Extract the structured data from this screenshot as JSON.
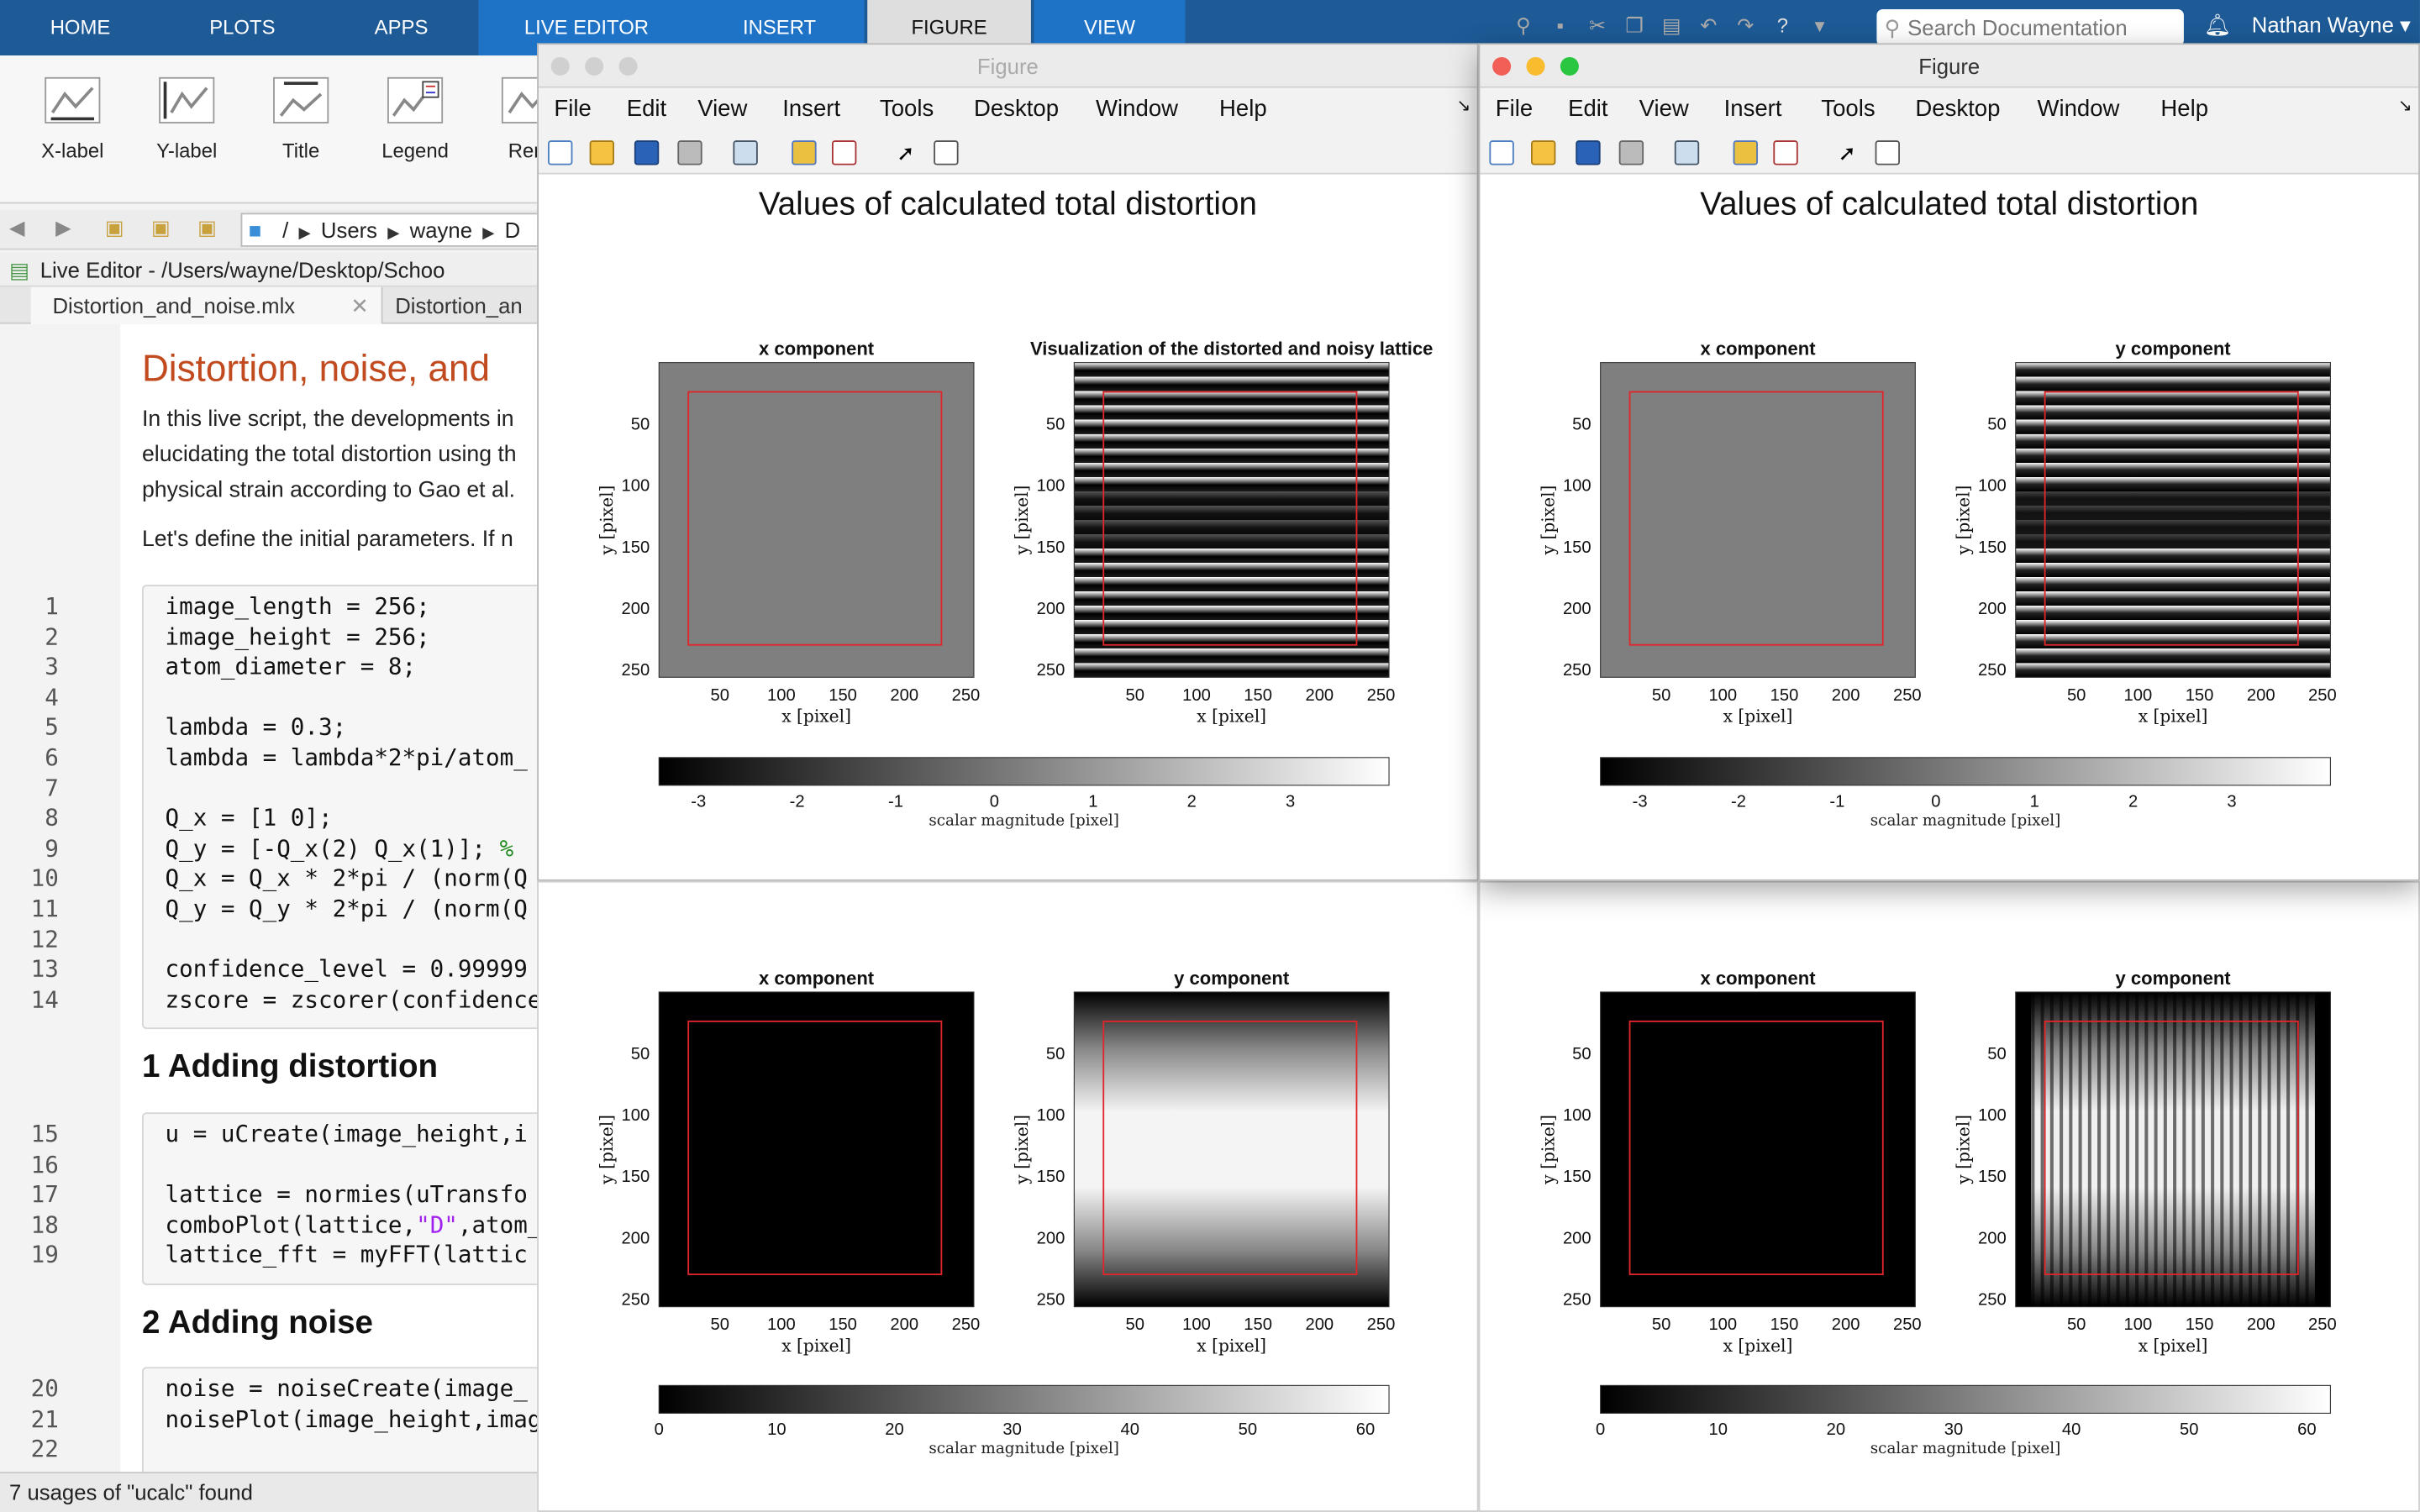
{
  "ribbon_tabs": [
    "HOME",
    "PLOTS",
    "APPS",
    "LIVE EDITOR",
    "INSERT",
    "FIGURE",
    "VIEW"
  ],
  "ribbon_buttons": [
    "X-label",
    "Y-label",
    "Title",
    "Legend",
    "Rem"
  ],
  "search_placeholder": "Search Documentation",
  "user_name": "Nathan Wayne",
  "path": [
    "/",
    "Users",
    "wayne",
    "D"
  ],
  "live_editor_title": "Live Editor - /Users/wayne/Desktop/Schoo",
  "file_tabs": [
    "Distortion_and_noise.mlx",
    "Distortion_an"
  ],
  "editor": {
    "title": "Distortion, noise, and",
    "paragraph_lines": [
      "In this live script, the developments in",
      "elucidating the total distortion using th",
      "physical strain according to Gao et al."
    ],
    "paragraph2": "Let's define the initial parameters. If n",
    "section1_num": "1",
    "section1_title": "Adding distortion",
    "section2_num": "2",
    "section2_title": "Adding noise",
    "code_lines": [
      {
        "n": "1",
        "t": "image_length = 256;"
      },
      {
        "n": "2",
        "t": "image_height = 256;"
      },
      {
        "n": "3",
        "t": "atom_diameter = 8;"
      },
      {
        "n": "4",
        "t": ""
      },
      {
        "n": "5",
        "t": "lambda = 0.3;"
      },
      {
        "n": "6",
        "t": "lambda = lambda*2*pi/atom_"
      },
      {
        "n": "7",
        "t": ""
      },
      {
        "n": "8",
        "t": "Q_x = [1 0];"
      },
      {
        "n": "9",
        "t": "Q_y = [-Q_x(2) Q_x(1)]; %"
      },
      {
        "n": "10",
        "t": "Q_x = Q_x * 2*pi / (norm(Q"
      },
      {
        "n": "11",
        "t": "Q_y = Q_y * 2*pi / (norm(Q"
      },
      {
        "n": "12",
        "t": ""
      },
      {
        "n": "13",
        "t": "confidence_level = 0.99999"
      },
      {
        "n": "14",
        "t": "zscore = zscorer(confidence"
      }
    ],
    "code_lines2": [
      {
        "n": "15",
        "t": "u = uCreate(image_height,i"
      },
      {
        "n": "16",
        "t": ""
      },
      {
        "n": "17",
        "t": "lattice = normies(uTransfo"
      },
      {
        "n": "18",
        "t": "comboPlot(lattice,\"D\",atom_"
      },
      {
        "n": "19",
        "t": "lattice_fft = myFFT(lattic"
      }
    ],
    "code_lines3": [
      {
        "n": "20",
        "t": "noise = noiseCreate(image_"
      },
      {
        "n": "21",
        "t": "noisePlot(image_height,imag"
      },
      {
        "n": "22",
        "t": ""
      }
    ]
  },
  "status_text": "7 usages of \"ucalc\" found",
  "figure_window_title": "Figure",
  "figure_menu": [
    "File",
    "Edit",
    "View",
    "Insert",
    "Tools",
    "Desktop",
    "Window",
    "Help"
  ],
  "fig_suptitle": "Values of calculated total distortion",
  "panel_titles": {
    "x": "x component",
    "y": "y component",
    "vis": "Visualization of the distorted and noisy lattice"
  },
  "axis_labels": {
    "x": "x [pixel]",
    "y": "y [pixel]"
  },
  "ticks": [
    "50",
    "100",
    "150",
    "200",
    "250"
  ],
  "colorbar_label": "scalar magnitude [pixel]",
  "colorbar_top": {
    "ticks": [
      "-3",
      "-2",
      "-1",
      "0",
      "1",
      "2",
      "3"
    ],
    "range": [
      -3.4,
      4.0
    ]
  },
  "colorbar_bottom": {
    "ticks": [
      "0",
      "10",
      "20",
      "30",
      "40",
      "50",
      "60"
    ],
    "range": [
      0,
      62
    ]
  },
  "colors": {
    "tabbar": "#1d5a96",
    "live_tab": "#1f73c6",
    "heading": "#c24a1f",
    "roi_box": "#e0262a"
  }
}
